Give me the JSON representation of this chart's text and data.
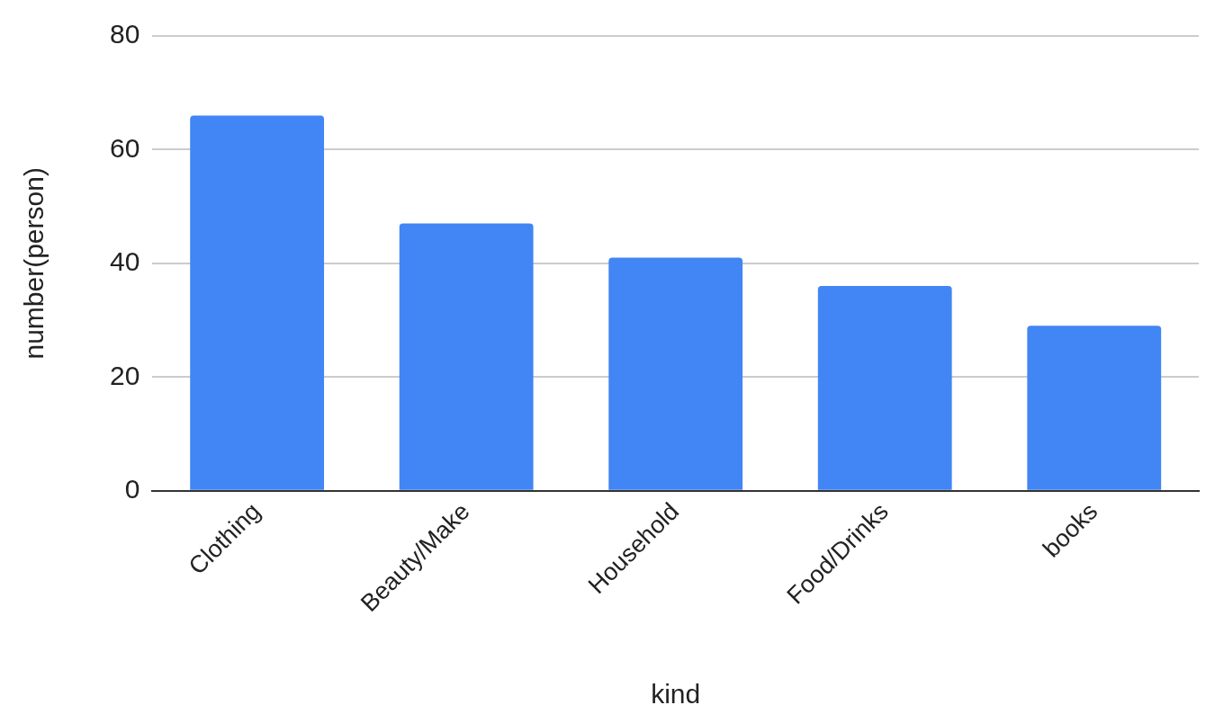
{
  "chart_data": {
    "type": "bar",
    "xlabel": "kind",
    "ylabel": "number(person)",
    "categories": [
      "Clothing",
      "Beauty/Make",
      "Household",
      "Food/Drinks",
      "books"
    ],
    "values": [
      66,
      47,
      41,
      36,
      29
    ],
    "color": "#4285f4",
    "ylim": [
      0,
      80
    ],
    "yticks": [
      0,
      20,
      40,
      60,
      80
    ],
    "grid": "y",
    "legend": false
  }
}
